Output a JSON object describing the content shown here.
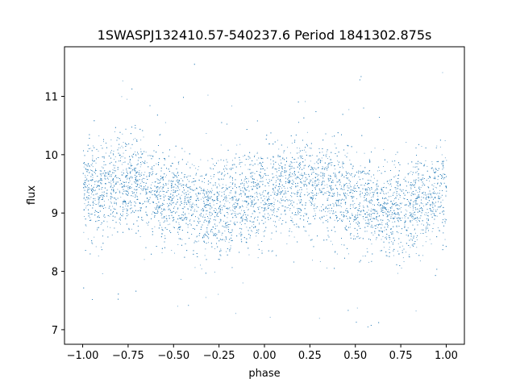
{
  "chart_data": {
    "type": "scatter",
    "title": "1SWASPJ132410.57-540237.6 Period 1841302.875s",
    "xlabel": "phase",
    "ylabel": "flux",
    "xlim": [
      -1.1,
      1.1
    ],
    "ylim": [
      6.75,
      11.85
    ],
    "xticks": [
      -1.0,
      -0.75,
      -0.5,
      -0.25,
      0.0,
      0.25,
      0.5,
      0.75,
      1.0
    ],
    "xtick_labels": [
      "−1.00",
      "−0.75",
      "−0.50",
      "−0.25",
      "0.00",
      "0.25",
      "0.50",
      "0.75",
      "1.00"
    ],
    "yticks": [
      7,
      8,
      9,
      10,
      11
    ],
    "ytick_labels": [
      "7",
      "8",
      "9",
      "10",
      "11"
    ],
    "grid": false,
    "legend": "none",
    "marker_color": "#1f77b4",
    "series": [
      {
        "phase_range": [
          -1.0,
          1.0
        ],
        "folded_period_phase": 1.0,
        "median_flux_profile": {
          "x": [
            -1.0,
            -0.9,
            -0.8,
            -0.7,
            -0.6,
            -0.5,
            -0.4,
            -0.3,
            -0.25,
            -0.2,
            -0.1,
            0.0,
            0.1,
            0.2,
            0.3,
            0.4,
            0.5,
            0.6,
            0.7,
            0.75,
            0.8,
            0.9,
            1.0
          ],
          "y": [
            9.4,
            9.4,
            9.5,
            9.55,
            9.35,
            9.2,
            9.1,
            9.05,
            9.0,
            9.1,
            9.25,
            9.35,
            9.4,
            9.5,
            9.55,
            9.35,
            9.2,
            9.1,
            9.05,
            9.0,
            9.1,
            9.25,
            9.4
          ]
        },
        "typical_scatter": 0.4,
        "outlier_range": [
          7.0,
          11.6
        ]
      }
    ]
  }
}
